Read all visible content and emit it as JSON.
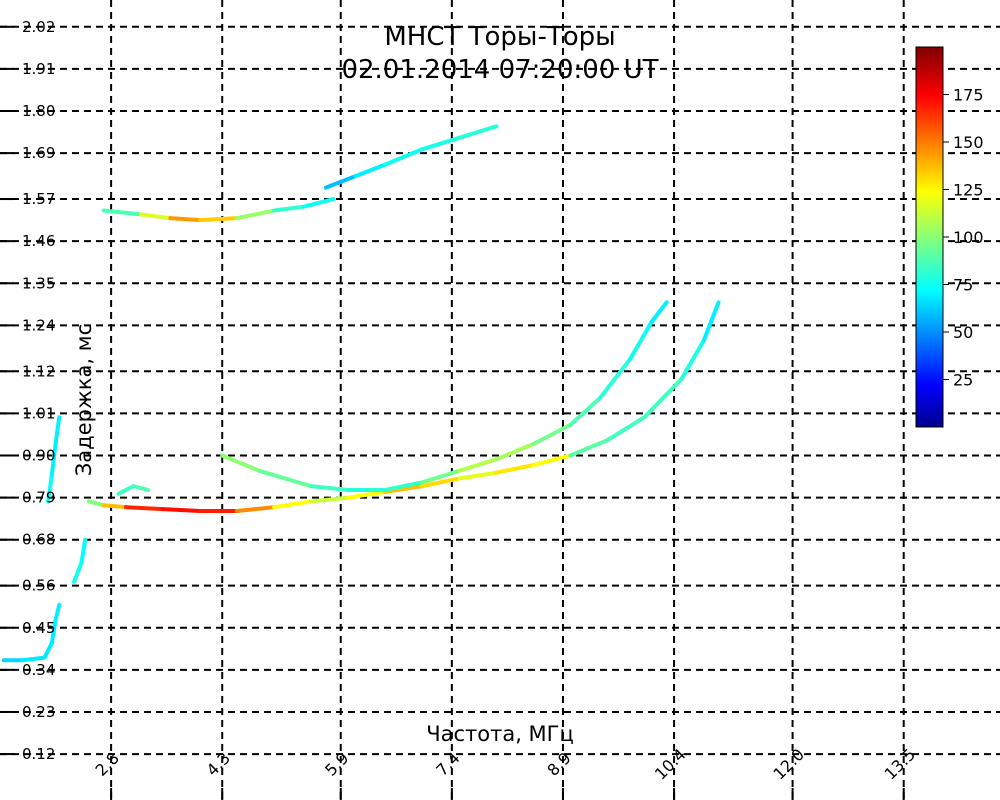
{
  "chart_data": {
    "type": "heatmap",
    "title_line1": "МНСТ Торы-Торы",
    "title_line2": "02.01.2014 07:20:00 UT",
    "xlabel": "Частота, МГц",
    "ylabel": "Задержка, мс",
    "x_ticks": [
      "2.8",
      "4.3",
      "5.9",
      "7.4",
      "8.9",
      "10.4",
      "12.0",
      "13.5"
    ],
    "y_ticks": [
      "2.02",
      "1.91",
      "1.80",
      "1.69",
      "1.57",
      "1.46",
      "1.35",
      "1.24",
      "1.12",
      "1.01",
      "0.90",
      "0.79",
      "0.68",
      "0.56",
      "0.45",
      "0.34",
      "0.23",
      "0.12"
    ],
    "xlim": [
      1.3,
      14.8
    ],
    "ylim": [
      0.0,
      2.09
    ],
    "grid": true,
    "colorbar": {
      "range": [
        0,
        200
      ],
      "ticks": [
        25,
        50,
        75,
        100,
        125,
        150,
        175
      ],
      "colormap": "jet"
    },
    "traces": [
      {
        "name": "traceA",
        "points": [
          [
            1.35,
            0.365,
            65
          ],
          [
            1.6,
            0.365,
            70
          ],
          [
            1.9,
            0.372,
            72
          ],
          [
            2.0,
            0.41,
            70
          ],
          [
            2.05,
            0.47,
            75
          ],
          [
            2.1,
            0.51,
            70
          ]
        ]
      },
      {
        "name": "traceB",
        "points": [
          [
            2.3,
            0.57,
            75
          ],
          [
            2.4,
            0.62,
            80
          ],
          [
            2.45,
            0.68,
            70
          ]
        ]
      },
      {
        "name": "traceC",
        "points": [
          [
            2.5,
            0.78,
            90
          ],
          [
            2.7,
            0.77,
            110
          ],
          [
            3.0,
            0.765,
            165
          ],
          [
            3.5,
            0.76,
            170
          ],
          [
            4.0,
            0.755,
            175
          ],
          [
            4.5,
            0.755,
            165
          ],
          [
            5.0,
            0.765,
            130
          ],
          [
            5.5,
            0.78,
            120
          ],
          [
            6.0,
            0.79,
            110
          ],
          [
            6.5,
            0.805,
            140
          ],
          [
            7.0,
            0.82,
            135
          ],
          [
            7.5,
            0.84,
            130
          ],
          [
            8.0,
            0.855,
            110
          ],
          [
            8.5,
            0.875,
            150
          ],
          [
            9.0,
            0.9,
            100
          ],
          [
            9.5,
            0.94,
            85
          ],
          [
            10.0,
            1.0,
            90
          ],
          [
            10.5,
            1.1,
            85
          ],
          [
            10.8,
            1.2,
            75
          ],
          [
            11.0,
            1.3,
            70
          ]
        ]
      },
      {
        "name": "traceD",
        "points": [
          [
            4.3,
            0.9,
            105
          ],
          [
            4.8,
            0.86,
            100
          ],
          [
            5.5,
            0.82,
            90
          ],
          [
            6.0,
            0.81,
            85
          ],
          [
            6.5,
            0.81,
            80
          ],
          [
            7.0,
            0.83,
            90
          ],
          [
            7.5,
            0.86,
            105
          ],
          [
            8.0,
            0.89,
            115
          ],
          [
            8.5,
            0.93,
            100
          ],
          [
            9.0,
            0.98,
            95
          ],
          [
            9.4,
            1.05,
            85
          ],
          [
            9.8,
            1.15,
            80
          ],
          [
            10.1,
            1.25,
            75
          ],
          [
            10.3,
            1.3,
            70
          ]
        ]
      },
      {
        "name": "traceE",
        "points": [
          [
            2.9,
            0.8,
            90
          ],
          [
            3.1,
            0.82,
            85
          ],
          [
            3.3,
            0.81,
            95
          ]
        ]
      },
      {
        "name": "traceF",
        "points": [
          [
            2.7,
            1.54,
            85
          ],
          [
            3.2,
            1.53,
            95
          ],
          [
            3.6,
            1.52,
            140
          ],
          [
            4.0,
            1.515,
            150
          ],
          [
            4.5,
            1.52,
            120
          ],
          [
            5.0,
            1.54,
            90
          ],
          [
            5.4,
            1.55,
            80
          ],
          [
            5.8,
            1.57,
            75
          ]
        ]
      },
      {
        "name": "traceG",
        "points": [
          [
            5.7,
            1.6,
            55
          ],
          [
            6.1,
            1.63,
            70
          ],
          [
            6.5,
            1.66,
            75
          ],
          [
            7.0,
            1.7,
            80
          ],
          [
            7.5,
            1.73,
            80
          ],
          [
            8.0,
            1.76,
            85
          ]
        ]
      },
      {
        "name": "traceH",
        "points": [
          [
            1.95,
            0.78,
            80
          ],
          [
            2.0,
            0.85,
            75
          ],
          [
            2.05,
            0.93,
            70
          ],
          [
            2.1,
            1.0,
            75
          ]
        ]
      }
    ]
  }
}
